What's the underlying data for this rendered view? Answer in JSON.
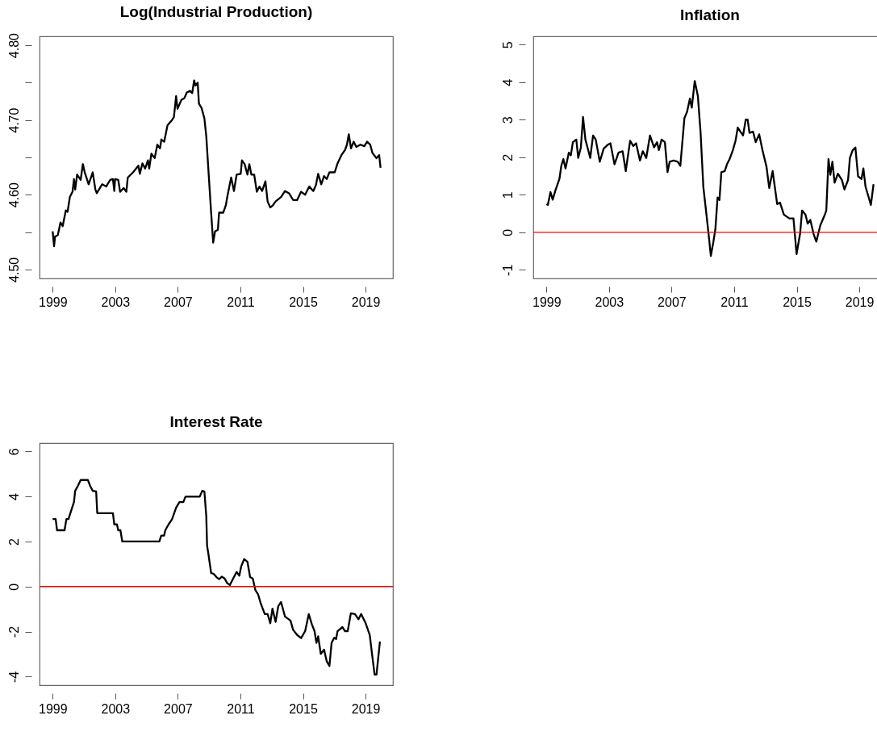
{
  "chart_data": [
    {
      "type": "line",
      "title": "Log(Industrial Production)",
      "color": "#000000",
      "xlim": [
        1998.16,
        2020.75
      ],
      "xticks": [
        1999,
        2003,
        2007,
        2011,
        2015,
        2019
      ],
      "ylim": [
        4.488,
        4.812
      ],
      "yticks": [
        {
          "value": 4.5,
          "label": "4.50"
        },
        {
          "value": 4.55,
          "label": null
        },
        {
          "value": 4.6,
          "label": "4.60"
        },
        {
          "value": 4.65,
          "label": null
        },
        {
          "value": 4.7,
          "label": "4.70"
        },
        {
          "value": 4.75,
          "label": null
        },
        {
          "value": 4.8,
          "label": "4.80"
        }
      ],
      "x": [
        1999.0,
        1999.09,
        1999.15,
        1999.33,
        1999.5,
        1999.64,
        1999.84,
        1999.95,
        2000.1,
        2000.27,
        2000.36,
        2000.44,
        2000.56,
        2000.79,
        2000.93,
        2001.05,
        2001.3,
        2001.56,
        2001.73,
        2001.82,
        2002.16,
        2002.42,
        2002.68,
        2002.85,
        2002.94,
        2002.99,
        2003.19,
        2003.31,
        2003.54,
        2003.71,
        2003.8,
        2004.14,
        2004.48,
        2004.57,
        2004.74,
        2004.91,
        2005.09,
        2005.17,
        2005.31,
        2005.52,
        2005.69,
        2005.86,
        2005.95,
        2006.13,
        2006.34,
        2006.63,
        2006.75,
        2006.89,
        2006.98,
        2007.23,
        2007.41,
        2007.58,
        2007.78,
        2007.92,
        2008.04,
        2008.13,
        2008.27,
        2008.35,
        2008.52,
        2008.7,
        2008.82,
        2008.95,
        2009.13,
        2009.26,
        2009.38,
        2009.56,
        2009.64,
        2009.9,
        2010.07,
        2010.16,
        2010.41,
        2010.59,
        2010.76,
        2011.02,
        2011.1,
        2011.27,
        2011.45,
        2011.57,
        2011.7,
        2011.88,
        2012.05,
        2012.22,
        2012.39,
        2012.6,
        2012.74,
        2012.91,
        2013.08,
        2013.25,
        2013.6,
        2013.85,
        2014.11,
        2014.37,
        2014.63,
        2014.88,
        2015.14,
        2015.4,
        2015.66,
        2015.83,
        2015.97,
        2016.17,
        2016.35,
        2016.52,
        2016.69,
        2017.03,
        2017.21,
        2017.46,
        2017.69,
        2017.81,
        2017.93,
        2018.07,
        2018.24,
        2018.41,
        2018.67,
        2018.92,
        2019.1,
        2019.3,
        2019.44,
        2019.7,
        2019.87,
        2019.96
      ],
      "values": [
        4.551,
        4.531,
        4.544,
        4.546,
        4.563,
        4.558,
        4.579,
        4.577,
        4.597,
        4.604,
        4.621,
        4.607,
        4.627,
        4.62,
        4.641,
        4.63,
        4.614,
        4.63,
        4.607,
        4.602,
        4.614,
        4.611,
        4.62,
        4.621,
        4.605,
        4.621,
        4.62,
        4.604,
        4.609,
        4.604,
        4.623,
        4.63,
        4.639,
        4.628,
        4.642,
        4.635,
        4.646,
        4.635,
        4.655,
        4.649,
        4.667,
        4.662,
        4.674,
        4.671,
        4.693,
        4.7,
        4.704,
        4.732,
        4.715,
        4.727,
        4.729,
        4.737,
        4.739,
        4.736,
        4.753,
        4.746,
        4.75,
        4.722,
        4.716,
        4.702,
        4.678,
        4.635,
        4.576,
        4.536,
        4.551,
        4.553,
        4.576,
        4.576,
        4.586,
        4.597,
        4.623,
        4.605,
        4.627,
        4.628,
        4.646,
        4.641,
        4.627,
        4.641,
        4.627,
        4.627,
        4.604,
        4.611,
        4.605,
        4.618,
        4.591,
        4.583,
        4.586,
        4.591,
        4.597,
        4.605,
        4.602,
        4.593,
        4.593,
        4.604,
        4.6,
        4.611,
        4.605,
        4.613,
        4.628,
        4.614,
        4.625,
        4.621,
        4.63,
        4.63,
        4.642,
        4.653,
        4.66,
        4.667,
        4.681,
        4.662,
        4.671,
        4.664,
        4.667,
        4.665,
        4.671,
        4.667,
        4.656,
        4.649,
        4.653,
        4.636
      ]
    },
    {
      "type": "line",
      "title": "Inflation",
      "color": "#000000",
      "xlim": [
        1998.16,
        2020.75
      ],
      "xticks": [
        1999,
        2003,
        2007,
        2011,
        2015,
        2019
      ],
      "ylim": [
        -1.23,
        5.22
      ],
      "yticks": [
        -1,
        0,
        1,
        2,
        3,
        4,
        5
      ],
      "ref_lines": [
        {
          "axis": "y",
          "value": 0,
          "color": "#ff0000"
        }
      ],
      "x": [
        1999.0,
        1999.09,
        1999.26,
        1999.4,
        1999.57,
        1999.83,
        1999.95,
        2000.08,
        2000.22,
        2000.43,
        2000.56,
        2000.69,
        2000.91,
        2001.03,
        2001.2,
        2001.34,
        2001.49,
        2001.67,
        2001.8,
        2001.98,
        2002.15,
        2002.41,
        2002.66,
        2002.92,
        2003.09,
        2003.35,
        2003.61,
        2003.87,
        2004.07,
        2004.35,
        2004.55,
        2004.73,
        2004.98,
        2005.16,
        2005.38,
        2005.62,
        2005.88,
        2006.07,
        2006.19,
        2006.36,
        2006.57,
        2006.74,
        2006.88,
        2007.13,
        2007.39,
        2007.56,
        2007.82,
        2007.99,
        2008.17,
        2008.29,
        2008.48,
        2008.68,
        2008.85,
        2009.03,
        2009.2,
        2009.34,
        2009.51,
        2009.67,
        2009.8,
        2009.94,
        2010.06,
        2010.18,
        2010.4,
        2010.54,
        2010.71,
        2010.92,
        2011.09,
        2011.23,
        2011.4,
        2011.57,
        2011.74,
        2011.86,
        2011.98,
        2012.21,
        2012.38,
        2012.6,
        2012.81,
        2013.07,
        2013.24,
        2013.46,
        2013.75,
        2013.93,
        2014.18,
        2014.53,
        2014.79,
        2014.99,
        2015.22,
        2015.34,
        2015.56,
        2015.7,
        2015.87,
        2016.08,
        2016.25,
        2016.51,
        2016.77,
        2016.89,
        2017.03,
        2017.15,
        2017.28,
        2017.42,
        2017.63,
        2017.89,
        2018.05,
        2018.28,
        2018.4,
        2018.57,
        2018.75,
        2018.92,
        2019.14,
        2019.26,
        2019.4,
        2019.55,
        2019.74,
        2019.91
      ],
      "values": [
        0.75,
        0.73,
        1.07,
        0.87,
        1.11,
        1.42,
        1.77,
        1.95,
        1.7,
        2.12,
        2.05,
        2.4,
        2.47,
        1.98,
        2.26,
        3.07,
        2.47,
        2.19,
        1.98,
        2.58,
        2.47,
        1.88,
        2.23,
        2.33,
        2.37,
        1.81,
        2.12,
        2.16,
        1.63,
        2.44,
        2.3,
        2.37,
        1.91,
        2.16,
        1.98,
        2.58,
        2.26,
        2.4,
        2.19,
        2.47,
        2.4,
        1.6,
        1.88,
        1.91,
        1.88,
        1.77,
        3.04,
        3.21,
        3.56,
        3.32,
        4.03,
        3.63,
        2.68,
        1.21,
        0.58,
        0.05,
        -0.63,
        -0.26,
        0.09,
        0.93,
        0.86,
        1.6,
        1.63,
        1.81,
        1.95,
        2.19,
        2.44,
        2.79,
        2.68,
        2.58,
        3.0,
        3.0,
        2.65,
        2.68,
        2.4,
        2.61,
        2.19,
        1.74,
        1.18,
        1.63,
        0.75,
        0.79,
        0.47,
        0.37,
        0.37,
        -0.58,
        -0.02,
        0.58,
        0.47,
        0.23,
        0.33,
        -0.05,
        -0.25,
        0.19,
        0.44,
        0.58,
        1.95,
        1.53,
        1.88,
        1.32,
        1.56,
        1.39,
        1.14,
        1.39,
        1.98,
        2.18,
        2.26,
        1.49,
        1.42,
        1.7,
        1.21,
        1.0,
        0.73,
        1.28
      ]
    },
    {
      "type": "line",
      "title": "Interest Rate",
      "color": "#000000",
      "xlim": [
        1998.16,
        2020.75
      ],
      "xticks": [
        1999,
        2003,
        2007,
        2011,
        2015,
        2019
      ],
      "ylim": [
        -4.38,
        6.37
      ],
      "yticks": [
        -4,
        -2,
        0,
        2,
        4,
        6
      ],
      "ref_lines": [
        {
          "axis": "y",
          "value": 0,
          "color": "#ff0000"
        }
      ],
      "x": [
        1999.0,
        1999.19,
        1999.28,
        1999.76,
        1999.88,
        2000.01,
        2000.36,
        2000.44,
        2000.62,
        2000.79,
        2001.25,
        2001.39,
        2001.56,
        2001.78,
        2001.85,
        2002.85,
        2002.94,
        2003.11,
        2003.19,
        2003.33,
        2003.45,
        2005.82,
        2005.94,
        2006.12,
        2006.2,
        2006.41,
        2006.63,
        2006.89,
        2007.1,
        2007.35,
        2007.49,
        2008.4,
        2008.56,
        2008.7,
        2008.82,
        2008.87,
        2008.95,
        2009.13,
        2009.3,
        2009.47,
        2009.64,
        2009.81,
        2009.99,
        2010.16,
        2010.33,
        2010.54,
        2010.76,
        2010.93,
        2011.05,
        2011.24,
        2011.45,
        2011.62,
        2011.79,
        2011.96,
        2012.13,
        2012.3,
        2012.56,
        2012.74,
        2012.91,
        2013.05,
        2013.25,
        2013.42,
        2013.6,
        2013.85,
        2014.2,
        2014.37,
        2014.63,
        2014.88,
        2015.14,
        2015.37,
        2015.57,
        2015.74,
        2015.86,
        2015.97,
        2016.14,
        2016.35,
        2016.52,
        2016.69,
        2016.83,
        2017.0,
        2017.12,
        2017.21,
        2017.52,
        2017.69,
        2017.86,
        2018.06,
        2018.32,
        2018.55,
        2018.72,
        2019.01,
        2019.27,
        2019.41,
        2019.58,
        2019.7,
        2019.92
      ],
      "values": [
        3.0,
        3.0,
        2.5,
        2.5,
        3.0,
        3.0,
        3.75,
        4.25,
        4.48,
        4.73,
        4.73,
        4.48,
        4.25,
        4.22,
        3.26,
        3.26,
        2.76,
        2.76,
        2.5,
        2.5,
        2.0,
        2.0,
        2.26,
        2.26,
        2.5,
        2.76,
        2.99,
        3.5,
        3.75,
        3.75,
        3.99,
        3.99,
        4.25,
        4.22,
        3.11,
        1.82,
        1.47,
        0.6,
        0.56,
        0.42,
        0.33,
        0.44,
        0.36,
        0.15,
        0.07,
        0.36,
        0.65,
        0.48,
        0.89,
        1.22,
        1.1,
        0.42,
        0.36,
        -0.16,
        -0.34,
        -0.75,
        -1.22,
        -1.22,
        -1.63,
        -0.98,
        -1.57,
        -0.87,
        -0.69,
        -1.33,
        -1.51,
        -1.92,
        -2.15,
        -2.29,
        -1.98,
        -1.22,
        -1.68,
        -1.98,
        -2.5,
        -2.21,
        -2.99,
        -2.8,
        -3.32,
        -3.53,
        -2.5,
        -2.27,
        -2.33,
        -1.98,
        -1.8,
        -1.98,
        -1.98,
        -1.19,
        -1.22,
        -1.45,
        -1.22,
        -1.63,
        -2.15,
        -2.97,
        -3.91,
        -3.91,
        -2.44
      ]
    }
  ]
}
